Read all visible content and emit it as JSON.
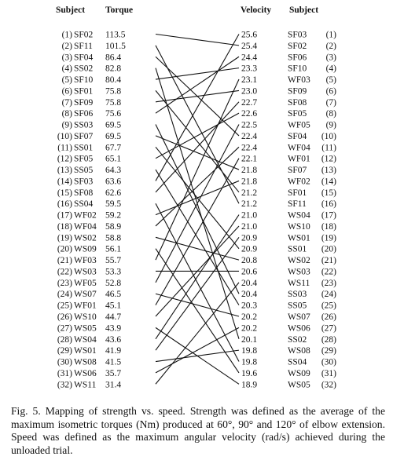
{
  "headers": {
    "left_subject": "Subject",
    "torque": "Torque",
    "velocity": "Velocity",
    "right_subject": "Subject"
  },
  "torque_column": [
    {
      "rank": "(1)",
      "subject": "SF02",
      "torque": "113.5"
    },
    {
      "rank": "(2)",
      "subject": "SF11",
      "torque": "101.5"
    },
    {
      "rank": "(3)",
      "subject": "SF04",
      "torque": "86.4"
    },
    {
      "rank": "(4)",
      "subject": "SS02",
      "torque": "82.8"
    },
    {
      "rank": "(5)",
      "subject": "SF10",
      "torque": "80.4"
    },
    {
      "rank": "(6)",
      "subject": "SF01",
      "torque": "75.8"
    },
    {
      "rank": "(7)",
      "subject": "SF09",
      "torque": "75.8"
    },
    {
      "rank": "(8)",
      "subject": "SF06",
      "torque": "75.6"
    },
    {
      "rank": "(9)",
      "subject": "SS03",
      "torque": "69.5"
    },
    {
      "rank": "(10)",
      "subject": "SF07",
      "torque": "69.5"
    },
    {
      "rank": "(11)",
      "subject": "SS01",
      "torque": "67.7"
    },
    {
      "rank": "(12)",
      "subject": "SF05",
      "torque": "65.1"
    },
    {
      "rank": "(13)",
      "subject": "SS05",
      "torque": "64.3"
    },
    {
      "rank": "(14)",
      "subject": "SF03",
      "torque": "63.6"
    },
    {
      "rank": "(15)",
      "subject": "SF08",
      "torque": "62.6"
    },
    {
      "rank": "(16)",
      "subject": "SS04",
      "torque": "59.5"
    },
    {
      "rank": "(17)",
      "subject": "WF02",
      "torque": "59.2"
    },
    {
      "rank": "(18)",
      "subject": "WF04",
      "torque": "58.9"
    },
    {
      "rank": "(19)",
      "subject": "WS02",
      "torque": "58.8"
    },
    {
      "rank": "(20)",
      "subject": "WS09",
      "torque": "56.1"
    },
    {
      "rank": "(21)",
      "subject": "WF03",
      "torque": "55.7"
    },
    {
      "rank": "(22)",
      "subject": "WS03",
      "torque": "53.3"
    },
    {
      "rank": "(23)",
      "subject": "WF05",
      "torque": "52.8"
    },
    {
      "rank": "(24)",
      "subject": "WS07",
      "torque": "46.5"
    },
    {
      "rank": "(25)",
      "subject": "WF01",
      "torque": "45.1"
    },
    {
      "rank": "(26)",
      "subject": "WS10",
      "torque": "44.7"
    },
    {
      "rank": "(27)",
      "subject": "WS05",
      "torque": "43.9"
    },
    {
      "rank": "(28)",
      "subject": "WS04",
      "torque": "43.6"
    },
    {
      "rank": "(29)",
      "subject": "WS01",
      "torque": "41.9"
    },
    {
      "rank": "(30)",
      "subject": "WS08",
      "torque": "41.5"
    },
    {
      "rank": "(31)",
      "subject": "WS06",
      "torque": "35.7"
    },
    {
      "rank": "(32)",
      "subject": "WS11",
      "torque": "31.4"
    }
  ],
  "velocity_column": [
    {
      "velocity": "25.6",
      "subject": "SF03",
      "rank": "(1)"
    },
    {
      "velocity": "25.4",
      "subject": "SF02",
      "rank": "(2)"
    },
    {
      "velocity": "24.4",
      "subject": "SF06",
      "rank": "(3)"
    },
    {
      "velocity": "23.3",
      "subject": "SF10",
      "rank": "(4)"
    },
    {
      "velocity": "23.1",
      "subject": "WF03",
      "rank": "(5)"
    },
    {
      "velocity": "23.0",
      "subject": "SF09",
      "rank": "(6)"
    },
    {
      "velocity": "22.7",
      "subject": "SF08",
      "rank": "(7)"
    },
    {
      "velocity": "22.6",
      "subject": "SF05",
      "rank": "(8)"
    },
    {
      "velocity": "22.5",
      "subject": "WF05",
      "rank": "(9)"
    },
    {
      "velocity": "22.4",
      "subject": "SF04",
      "rank": "(10)"
    },
    {
      "velocity": "22.4",
      "subject": "WF04",
      "rank": "(11)"
    },
    {
      "velocity": "22.1",
      "subject": "WF01",
      "rank": "(12)"
    },
    {
      "velocity": "21.8",
      "subject": "SF07",
      "rank": "(13)"
    },
    {
      "velocity": "21.8",
      "subject": "WF02",
      "rank": "(14)"
    },
    {
      "velocity": "21.2",
      "subject": "SF01",
      "rank": "(15)"
    },
    {
      "velocity": "21.2",
      "subject": "SF11",
      "rank": "(16)"
    },
    {
      "velocity": "21.0",
      "subject": "WS04",
      "rank": "(17)"
    },
    {
      "velocity": "21.0",
      "subject": "WS10",
      "rank": "(18)"
    },
    {
      "velocity": "20.9",
      "subject": "WS01",
      "rank": "(19)"
    },
    {
      "velocity": "20.9",
      "subject": "SS01",
      "rank": "(20)"
    },
    {
      "velocity": "20.8",
      "subject": "WS02",
      "rank": "(21)"
    },
    {
      "velocity": "20.6",
      "subject": "WS03",
      "rank": "(22)"
    },
    {
      "velocity": "20.4",
      "subject": "WS11",
      "rank": "(23)"
    },
    {
      "velocity": "20.4",
      "subject": "SS03",
      "rank": "(24)"
    },
    {
      "velocity": "20.3",
      "subject": "SS05",
      "rank": "(25)"
    },
    {
      "velocity": "20.2",
      "subject": "WS07",
      "rank": "(26)"
    },
    {
      "velocity": "20.2",
      "subject": "WS06",
      "rank": "(27)"
    },
    {
      "velocity": "20.1",
      "subject": "SS02",
      "rank": "(28)"
    },
    {
      "velocity": "19.8",
      "subject": "WS08",
      "rank": "(29)"
    },
    {
      "velocity": "19.8",
      "subject": "SS04",
      "rank": "(30)"
    },
    {
      "velocity": "19.6",
      "subject": "WS09",
      "rank": "(31)"
    },
    {
      "velocity": "18.9",
      "subject": "WS05",
      "rank": "(32)"
    }
  ],
  "links": [
    [
      1,
      2
    ],
    [
      2,
      16
    ],
    [
      3,
      10
    ],
    [
      4,
      28
    ],
    [
      5,
      4
    ],
    [
      6,
      15
    ],
    [
      7,
      6
    ],
    [
      8,
      3
    ],
    [
      9,
      24
    ],
    [
      10,
      13
    ],
    [
      11,
      20
    ],
    [
      12,
      8
    ],
    [
      13,
      25
    ],
    [
      14,
      1
    ],
    [
      15,
      7
    ],
    [
      16,
      30
    ],
    [
      17,
      14
    ],
    [
      18,
      11
    ],
    [
      19,
      21
    ],
    [
      20,
      31
    ],
    [
      21,
      5
    ],
    [
      22,
      22
    ],
    [
      23,
      9
    ],
    [
      24,
      26
    ],
    [
      25,
      12
    ],
    [
      26,
      18
    ],
    [
      27,
      32
    ],
    [
      28,
      17
    ],
    [
      29,
      19
    ],
    [
      30,
      29
    ],
    [
      31,
      27
    ],
    [
      32,
      23
    ]
  ],
  "caption": "Fig. 5. Mapping of strength vs. speed. Strength was defined as the average of the maximum isometric torques (Nm) produced at 60°, 90° and 120° of elbow extension. Speed was defined as the maximum angular velocity (rad/s) achieved during the unloaded trial."
}
